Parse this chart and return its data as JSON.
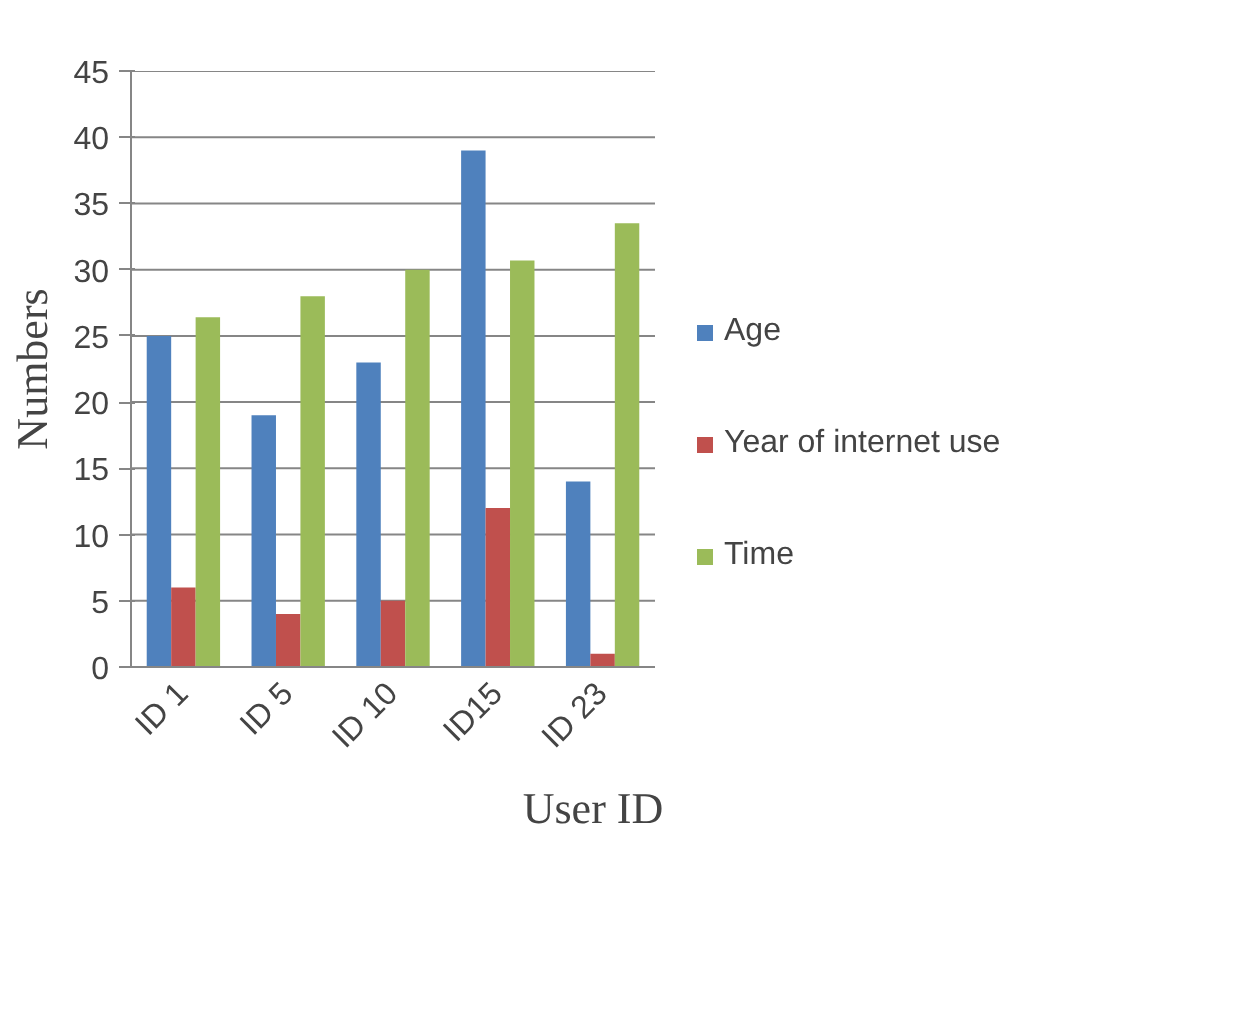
{
  "chart_data": {
    "type": "bar",
    "xlabel": "User ID",
    "ylabel": "Numbers",
    "categories": [
      "ID 1",
      "ID 5",
      "ID 10",
      "ID15",
      "ID 23"
    ],
    "series": [
      {
        "name": "Age",
        "color": "#4f81bd",
        "values": [
          25,
          19,
          23,
          39,
          14
        ]
      },
      {
        "name": "Year of internet use",
        "color": "#c0504d",
        "values": [
          6,
          4,
          5,
          12,
          1
        ]
      },
      {
        "name": "Time",
        "color": "#9bbb59",
        "values": [
          26.4,
          28,
          30,
          30.7,
          33.5
        ]
      }
    ],
    "ylim": [
      0,
      45
    ],
    "yticks": [
      0,
      5,
      10,
      15,
      20,
      25,
      30,
      35,
      40,
      45
    ],
    "grid": "y",
    "legend": "right"
  }
}
